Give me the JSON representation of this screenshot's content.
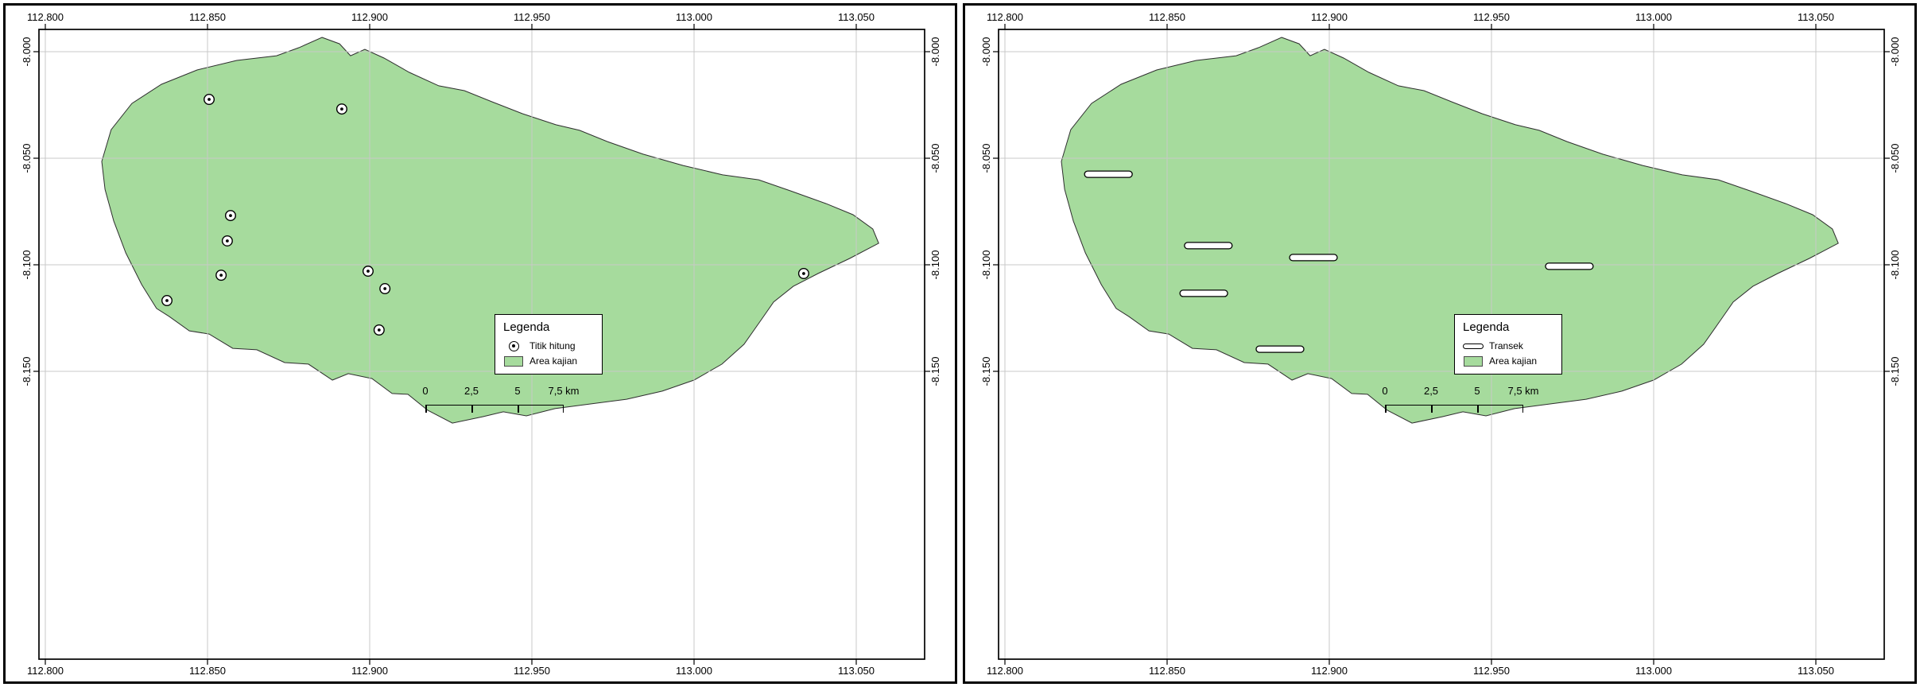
{
  "shared": {
    "legend_title": "Legenda",
    "x_tick_labels": [
      "112.800",
      "112.850",
      "112.900",
      "112.950",
      "113.000",
      "113.050"
    ],
    "y_tick_labels": [
      "-8.000",
      "-8.050",
      "-8.100",
      "-8.150"
    ],
    "scalebar_labels": [
      "0",
      "2,5",
      "5",
      "7,5 km"
    ],
    "colors": {
      "area_fill": "#a6db9d",
      "area_stroke": "#2e2e2e",
      "grid_line": "#c8c8c8",
      "frame": "#000000"
    },
    "area_polygon": [
      [
        112.8853,
        -7.9933
      ],
      [
        112.8907,
        -7.9963
      ],
      [
        112.8941,
        -8.0019
      ],
      [
        112.8985,
        -7.9989
      ],
      [
        112.9044,
        -8.003
      ],
      [
        112.9122,
        -8.0097
      ],
      [
        112.9213,
        -8.016
      ],
      [
        112.9292,
        -8.0183
      ],
      [
        112.9377,
        -8.0235
      ],
      [
        112.9471,
        -8.0291
      ],
      [
        112.9574,
        -8.0343
      ],
      [
        112.9647,
        -8.0369
      ],
      [
        112.9733,
        -8.0422
      ],
      [
        112.9843,
        -8.0481
      ],
      [
        112.9966,
        -8.0534
      ],
      [
        113.0088,
        -8.0578
      ],
      [
        113.0199,
        -8.0601
      ],
      [
        113.0297,
        -8.0653
      ],
      [
        113.0407,
        -8.0713
      ],
      [
        113.049,
        -8.0765
      ],
      [
        113.0551,
        -8.0832
      ],
      [
        113.0569,
        -8.0899
      ],
      [
        113.048,
        -8.097
      ],
      [
        113.0382,
        -8.1041
      ],
      [
        113.0306,
        -8.1101
      ],
      [
        113.0245,
        -8.1175
      ],
      [
        113.0206,
        -8.1261
      ],
      [
        113.0154,
        -8.1373
      ],
      [
        113.0086,
        -8.1466
      ],
      [
        113.0,
        -8.1541
      ],
      [
        112.9902,
        -8.1593
      ],
      [
        112.9792,
        -8.1631
      ],
      [
        112.9681,
        -8.1653
      ],
      [
        112.9571,
        -8.1675
      ],
      [
        112.9483,
        -8.1709
      ],
      [
        112.9412,
        -8.169
      ],
      [
        112.9348,
        -8.1713
      ],
      [
        112.9255,
        -8.1743
      ],
      [
        112.9179,
        -8.1683
      ],
      [
        112.9118,
        -8.1608
      ],
      [
        112.9069,
        -8.1604
      ],
      [
        112.9007,
        -8.1534
      ],
      [
        112.8934,
        -8.1511
      ],
      [
        112.8885,
        -8.1541
      ],
      [
        112.8811,
        -8.1466
      ],
      [
        112.8738,
        -8.1459
      ],
      [
        112.8652,
        -8.1399
      ],
      [
        112.8578,
        -8.1392
      ],
      [
        112.8505,
        -8.1325
      ],
      [
        112.8444,
        -8.131
      ],
      [
        112.8382,
        -8.1243
      ],
      [
        112.8343,
        -8.1205
      ],
      [
        112.8297,
        -8.1093
      ],
      [
        112.8248,
        -8.0944
      ],
      [
        112.8211,
        -8.0795
      ],
      [
        112.8184,
        -8.0646
      ],
      [
        112.8174,
        -8.0515
      ],
      [
        112.8203,
        -8.0366
      ],
      [
        112.8267,
        -8.0243
      ],
      [
        112.8358,
        -8.0153
      ],
      [
        112.8468,
        -8.0086
      ],
      [
        112.859,
        -8.0041
      ],
      [
        112.8713,
        -8.0019
      ],
      [
        112.8782,
        -7.9981
      ]
    ]
  },
  "panels": [
    {
      "id": "titik-hitung-map",
      "legend_items": [
        {
          "symbol": "point-marker",
          "label": "Titik hitung"
        },
        {
          "symbol": "area-swatch",
          "label": "Area kajian"
        }
      ],
      "points": [
        [
          112.8505,
          -8.0224
        ],
        [
          112.8914,
          -8.0269
        ],
        [
          112.8571,
          -8.0769
        ],
        [
          112.8561,
          -8.0888
        ],
        [
          112.8542,
          -8.1049
        ],
        [
          112.8375,
          -8.1168
        ],
        [
          112.8995,
          -8.103
        ],
        [
          112.9047,
          -8.1112
        ],
        [
          112.9029,
          -8.1306
        ],
        [
          113.0338,
          -8.1041
        ]
      ]
    },
    {
      "id": "transek-map",
      "legend_items": [
        {
          "symbol": "transect-marker",
          "label": "Transek"
        },
        {
          "symbol": "area-swatch",
          "label": "Area kajian"
        }
      ],
      "transects": [
        [
          112.8319,
          -8.0575
        ],
        [
          112.8627,
          -8.091
        ],
        [
          112.8951,
          -8.0966
        ],
        [
          112.8613,
          -8.1134
        ],
        [
          112.8848,
          -8.1396
        ],
        [
          112.974,
          -8.1007
        ]
      ]
    }
  ]
}
